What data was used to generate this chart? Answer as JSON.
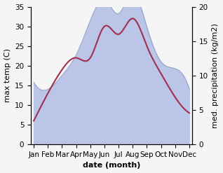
{
  "months": [
    "Jan",
    "Feb",
    "Mar",
    "Apr",
    "May",
    "Jun",
    "Jul",
    "Aug",
    "Sep",
    "Oct",
    "Nov",
    "Dec"
  ],
  "temperature": [
    6,
    13,
    19,
    22,
    22,
    30,
    28,
    32,
    25,
    18,
    12,
    8
  ],
  "precipitation": [
    9,
    8,
    10,
    13,
    18,
    21,
    19,
    22,
    17,
    12,
    11,
    8
  ],
  "temp_color": "#a03050",
  "precip_fill_color": "#bbc5e8",
  "precip_line_color": "#9aa5cc",
  "ylim_left": [
    0,
    35
  ],
  "ylim_right": [
    0,
    20
  ],
  "yticks_left": [
    0,
    5,
    10,
    15,
    20,
    25,
    30,
    35
  ],
  "yticks_right": [
    0,
    5,
    10,
    15,
    20
  ],
  "xlabel": "date (month)",
  "ylabel_left": "max temp (C)",
  "ylabel_right": "med. precipitation (kg/m2)",
  "bg_color": "#f5f5f5",
  "label_fontsize": 8,
  "tick_fontsize": 7.5
}
